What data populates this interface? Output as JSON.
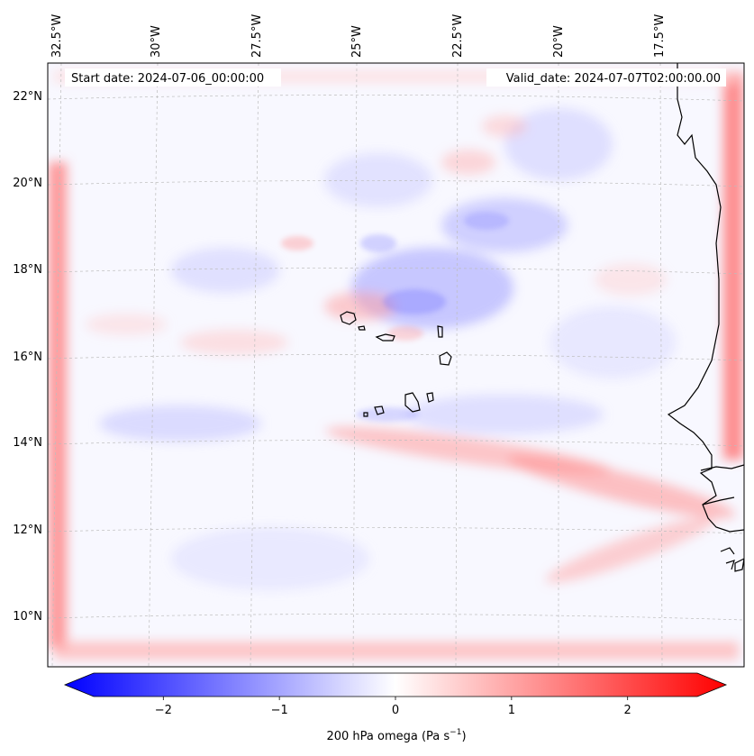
{
  "map": {
    "start_date": "Start date: 2024-07-06_00:00:00",
    "valid_date": "Valid_date: 2024-07-07T02:00:00.00",
    "lon_labels": [
      "32.5°W",
      "30°W",
      "27.5°W",
      "25°W",
      "22.5°W",
      "20°W",
      "17.5°W"
    ],
    "lat_labels": [
      "22°N",
      "20°N",
      "18°N",
      "16°N",
      "14°N",
      "12°N",
      "10°N"
    ],
    "colormap": "bwr",
    "field_shading": "diverging blue-white-red"
  },
  "colorbar": {
    "tick_labels": [
      "−2",
      "−1",
      "0",
      "1",
      "2"
    ],
    "tick_values": [
      -2,
      -1,
      0,
      1,
      2
    ],
    "range": [
      -2.6,
      2.6
    ],
    "label_main": "200 hPa omega (Pa s",
    "label_exp": "−1",
    "label_close": ")",
    "color_min": "#0000ff",
    "color_mid": "#ffffff",
    "color_max": "#ff0000"
  }
}
